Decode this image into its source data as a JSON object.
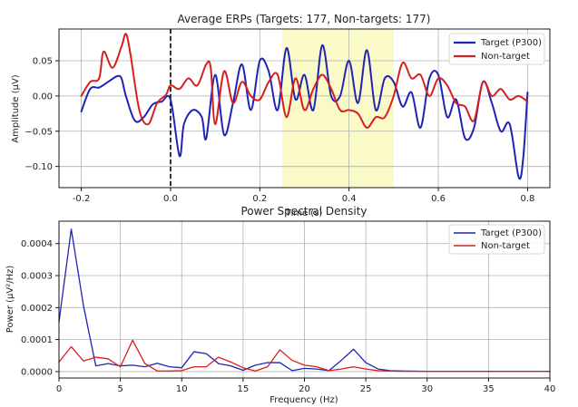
{
  "chart_data": [
    {
      "type": "line",
      "title": "Average ERPs (Targets: 177, Non-targets: 177)",
      "xlabel": "Time (s)",
      "ylabel": "Amplitude (µV)",
      "xlim": [
        -0.25,
        0.85
      ],
      "ylim": [
        -0.13,
        0.095
      ],
      "xticks": [
        "-0.2",
        "0.0",
        "0.2",
        "0.4",
        "0.6",
        "0.8"
      ],
      "xtick_values": [
        -0.2,
        0.0,
        0.2,
        0.4,
        0.6,
        0.8
      ],
      "yticks": [
        "−0.10",
        "−0.05",
        "0.00",
        "0.05"
      ],
      "ytick_values": [
        -0.1,
        -0.05,
        0.0,
        0.05
      ],
      "grid": true,
      "legend_position": "top-right",
      "stimulus_onset": 0.0,
      "highlight_window": [
        0.25,
        0.5
      ],
      "highlight_color": "#fafac8",
      "series": [
        {
          "name": "Target (P300)",
          "color": "#1f24b4",
          "x": [
            -0.2,
            -0.18,
            -0.16,
            -0.14,
            -0.12,
            -0.11,
            -0.1,
            -0.08,
            -0.06,
            -0.04,
            -0.02,
            0.0,
            0.02,
            0.03,
            0.05,
            0.07,
            0.08,
            0.1,
            0.12,
            0.14,
            0.16,
            0.18,
            0.2,
            0.22,
            0.24,
            0.26,
            0.28,
            0.3,
            0.32,
            0.34,
            0.36,
            0.38,
            0.4,
            0.42,
            0.44,
            0.46,
            0.48,
            0.5,
            0.52,
            0.54,
            0.56,
            0.58,
            0.6,
            0.62,
            0.64,
            0.66,
            0.68,
            0.7,
            0.72,
            0.74,
            0.76,
            0.78,
            0.79,
            0.8
          ],
          "y": [
            -0.022,
            0.01,
            0.012,
            0.02,
            0.028,
            0.025,
            0.0,
            -0.035,
            -0.03,
            -0.012,
            -0.008,
            -0.005,
            -0.085,
            -0.04,
            -0.02,
            -0.03,
            -0.06,
            0.03,
            -0.055,
            -0.01,
            0.045,
            -0.02,
            0.05,
            0.035,
            -0.02,
            0.068,
            -0.005,
            0.03,
            -0.02,
            0.072,
            0.0,
            0.0,
            0.05,
            -0.01,
            0.065,
            -0.02,
            0.025,
            0.02,
            -0.015,
            0.005,
            -0.045,
            0.025,
            0.03,
            -0.03,
            -0.005,
            -0.06,
            -0.045,
            0.02,
            -0.01,
            -0.05,
            -0.04,
            -0.115,
            -0.09,
            0.005
          ]
        },
        {
          "name": "Non-target",
          "color": "#d62020",
          "x": [
            -0.2,
            -0.18,
            -0.16,
            -0.15,
            -0.13,
            -0.11,
            -0.1,
            -0.09,
            -0.07,
            -0.05,
            -0.03,
            -0.01,
            0.0,
            0.02,
            0.04,
            0.06,
            0.08,
            0.09,
            0.1,
            0.12,
            0.14,
            0.16,
            0.18,
            0.2,
            0.22,
            0.24,
            0.26,
            0.28,
            0.3,
            0.32,
            0.34,
            0.36,
            0.38,
            0.4,
            0.42,
            0.44,
            0.46,
            0.48,
            0.5,
            0.52,
            0.54,
            0.56,
            0.58,
            0.6,
            0.62,
            0.64,
            0.66,
            0.68,
            0.7,
            0.72,
            0.74,
            0.76,
            0.78,
            0.8
          ],
          "y": [
            0.0,
            0.02,
            0.025,
            0.063,
            0.04,
            0.07,
            0.088,
            0.06,
            -0.02,
            -0.04,
            -0.01,
            0.002,
            0.015,
            0.01,
            0.025,
            0.015,
            0.045,
            0.04,
            -0.04,
            0.035,
            -0.01,
            0.02,
            0.0,
            -0.005,
            0.02,
            0.03,
            -0.03,
            0.025,
            -0.02,
            0.01,
            0.03,
            0.01,
            -0.02,
            -0.02,
            -0.025,
            -0.045,
            -0.03,
            -0.03,
            0.0,
            0.047,
            0.025,
            0.03,
            0.0,
            0.025,
            0.015,
            -0.01,
            -0.015,
            -0.035,
            0.02,
            0.0,
            0.01,
            -0.005,
            0.0,
            -0.008
          ]
        }
      ]
    },
    {
      "type": "line",
      "title": "Power Spectral Density",
      "xlabel": "Frequency (Hz)",
      "ylabel": "Power (µV²/Hz)",
      "xlim": [
        0,
        40
      ],
      "ylim": [
        -2e-05,
        0.00047
      ],
      "xticks": [
        "0",
        "5",
        "10",
        "15",
        "20",
        "25",
        "30",
        "35",
        "40"
      ],
      "xtick_values": [
        0,
        5,
        10,
        15,
        20,
        25,
        30,
        35,
        40
      ],
      "yticks": [
        "0.0000",
        "0.0001",
        "0.0002",
        "0.0003",
        "0.0004"
      ],
      "ytick_values": [
        0.0,
        0.0001,
        0.0002,
        0.0003,
        0.0004
      ],
      "grid": true,
      "legend_position": "top-right",
      "series": [
        {
          "name": "Target (P300)",
          "color": "#1f24b4",
          "x": [
            0,
            1,
            2,
            3,
            4,
            5,
            6,
            7,
            8,
            9,
            10,
            11,
            12,
            13,
            14,
            15,
            16,
            17,
            18,
            19,
            20,
            21,
            22,
            23,
            24,
            25,
            26,
            27,
            28,
            30,
            32,
            34,
            36,
            38,
            40
          ],
          "y": [
            0.000155,
            0.000445,
            0.000205,
            1.8e-05,
            2.5e-05,
            1.8e-05,
            2e-05,
            1.5e-05,
            2.6e-05,
            1.5e-05,
            1.2e-05,
            6.2e-05,
            5.6e-05,
            2.5e-05,
            1.8e-05,
            4e-06,
            2e-05,
            2.8e-05,
            2.8e-05,
            3e-06,
            1e-05,
            8e-06,
            3e-06,
            3.5e-05,
            7e-05,
            2.8e-05,
            8e-06,
            3e-06,
            2e-06,
            1e-06,
            1e-06,
            1e-06,
            1e-06,
            1e-06,
            1e-06
          ]
        },
        {
          "name": "Non-target",
          "color": "#d62020",
          "x": [
            0,
            1,
            2,
            3,
            4,
            5,
            6,
            7,
            8,
            9,
            10,
            11,
            12,
            13,
            14,
            15,
            16,
            17,
            18,
            19,
            20,
            21,
            22,
            23,
            24,
            25,
            26,
            27,
            28,
            30,
            32,
            34,
            36,
            38,
            40
          ],
          "y": [
            3e-05,
            7.8e-05,
            3.3e-05,
            4.5e-05,
            4e-05,
            1.5e-05,
            9.8e-05,
            2.5e-05,
            2e-06,
            2e-06,
            3e-06,
            1.5e-05,
            1.5e-05,
            4.5e-05,
            3e-05,
            1.2e-05,
            2e-06,
            1.5e-05,
            6.8e-05,
            3.5e-05,
            2e-05,
            1.5e-05,
            3e-06,
            8e-06,
            1.5e-05,
            8e-06,
            3e-06,
            2e-06,
            1e-06,
            1e-06,
            1e-06,
            1e-06,
            1e-06,
            1e-06,
            1e-06
          ]
        }
      ]
    }
  ]
}
